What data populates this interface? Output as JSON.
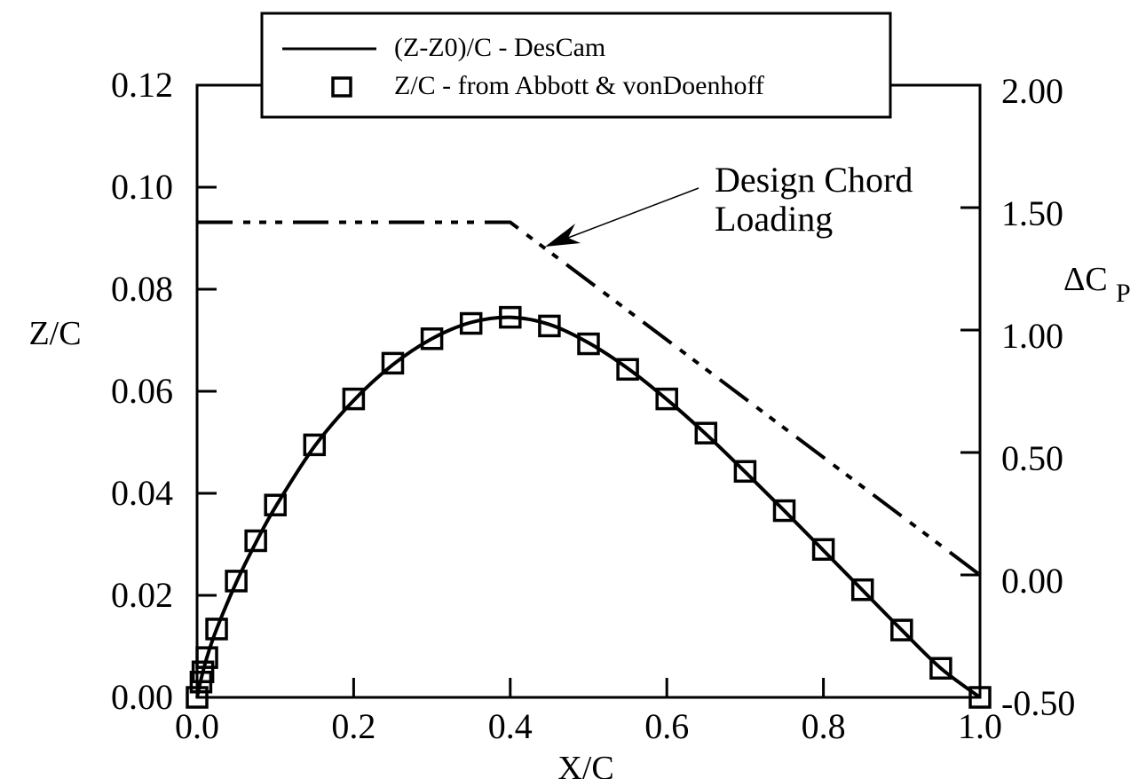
{
  "chart_data": {
    "type": "line",
    "title": "",
    "xlabel": "X/C",
    "ylabel": "Z/C",
    "y2label": "ΔC_P",
    "xlim": [
      0.0,
      1.0
    ],
    "ylim": [
      0.0,
      0.12
    ],
    "y2lim": [
      -0.5,
      2.0
    ],
    "grid": false,
    "legend_position": "top-center",
    "x_ticks": [
      "0.0",
      "0.2",
      "0.4",
      "0.6",
      "0.8",
      "1.0"
    ],
    "y_ticks": [
      "0.00",
      "0.02",
      "0.04",
      "0.06",
      "0.08",
      "0.10",
      "0.12"
    ],
    "y2_ticks": [
      "-0.50",
      "0.00",
      "0.50",
      "1.00",
      "1.50",
      "2.00"
    ],
    "legend": [
      {
        "label": "(Z-Z0)/C - DesCam",
        "style": "solid-line"
      },
      {
        "label": "Z/C - from Abbott & vonDoenhoff",
        "style": "open-square-marker"
      }
    ],
    "series": [
      {
        "name": "(Z-Z0)/C - DesCam",
        "axis": "left",
        "style": "solid",
        "x": [
          0.0,
          0.005,
          0.0125,
          0.025,
          0.05,
          0.075,
          0.1,
          0.15,
          0.2,
          0.25,
          0.3,
          0.35,
          0.4,
          0.45,
          0.5,
          0.55,
          0.6,
          0.65,
          0.7,
          0.75,
          0.8,
          0.85,
          0.9,
          0.95,
          1.0
        ],
        "y": [
          0.0,
          0.0035,
          0.0078,
          0.0134,
          0.0225,
          0.0303,
          0.0373,
          0.0492,
          0.0582,
          0.0652,
          0.0703,
          0.0735,
          0.0745,
          0.0731,
          0.0695,
          0.0645,
          0.0584,
          0.0516,
          0.0442,
          0.0366,
          0.0288,
          0.021,
          0.0132,
          0.0057,
          0.0
        ]
      },
      {
        "name": "Z/C - from Abbott & vonDoenhoff",
        "axis": "left",
        "style": "open-square",
        "x": [
          0.0,
          0.005,
          0.0075,
          0.0125,
          0.025,
          0.05,
          0.075,
          0.1,
          0.15,
          0.2,
          0.25,
          0.3,
          0.35,
          0.4,
          0.45,
          0.5,
          0.55,
          0.6,
          0.65,
          0.7,
          0.75,
          0.8,
          0.85,
          0.9,
          0.95,
          1.0
        ],
        "y": [
          0.0,
          0.003,
          0.005,
          0.0078,
          0.0134,
          0.0228,
          0.0307,
          0.0377,
          0.0495,
          0.0585,
          0.0655,
          0.0703,
          0.0733,
          0.0745,
          0.0728,
          0.0693,
          0.0643,
          0.0585,
          0.0518,
          0.0443,
          0.0366,
          0.029,
          0.0211,
          0.0132,
          0.0057,
          0.0
        ]
      },
      {
        "name": "Design Chord Loading",
        "axis": "right",
        "style": "dash-dot-dot",
        "x": [
          0.0,
          0.4,
          1.0
        ],
        "y": [
          1.44,
          1.44,
          0.0
        ]
      }
    ],
    "annotations": [
      {
        "text_line1": "Design Chord",
        "text_line2": "Loading",
        "arrow_to_x": 0.45,
        "arrow_to_y2": 1.38
      }
    ]
  },
  "labels": {
    "xlabel": "X/C",
    "ylabel": "Z/C",
    "y2label_main": "ΔC",
    "y2label_sub": "P",
    "legend_0": "(Z-Z0)/C - DesCam",
    "legend_1": "Z/C - from Abbott & vonDoenhoff",
    "annot_line1": "Design Chord",
    "annot_line2": "Loading"
  }
}
